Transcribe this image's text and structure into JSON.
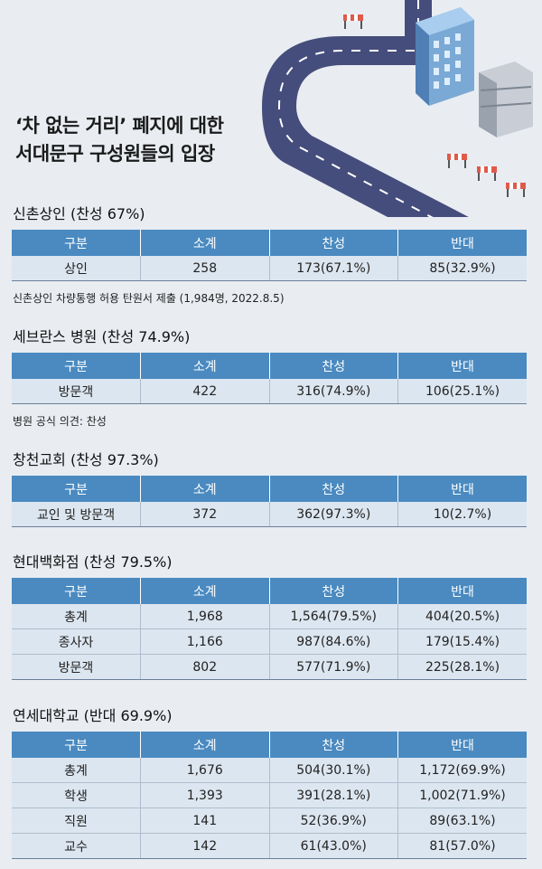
{
  "title": {
    "line1": "‘차 없는 거리’ 폐지에 대한",
    "line2": "서대문구 구성원들의 입장"
  },
  "sections": [
    {
      "heading": "신촌상인 (찬성 67%)",
      "headers": [
        "구분",
        "소계",
        "찬성",
        "반대"
      ],
      "rows": [
        [
          "상인",
          "258",
          "173(67.1%)",
          "85(32.9%)"
        ]
      ],
      "note": "신촌상인 차량통행 허용 탄원서 제출 (1,984명, 2022.8.5)"
    },
    {
      "heading": "세브란스 병원 (찬성 74.9%)",
      "headers": [
        "구분",
        "소계",
        "찬성",
        "반대"
      ],
      "rows": [
        [
          "방문객",
          "422",
          "316(74.9%)",
          "106(25.1%)"
        ]
      ],
      "note": "병원 공식 의견: 찬성"
    },
    {
      "heading": "창천교회 (찬성 97.3%)",
      "headers": [
        "구분",
        "소계",
        "찬성",
        "반대"
      ],
      "rows": [
        [
          "교인 및 방문객",
          "372",
          "362(97.3%)",
          "10(2.7%)"
        ]
      ]
    },
    {
      "heading": "현대백화점 (찬성 79.5%)",
      "headers": [
        "구분",
        "소계",
        "찬성",
        "반대"
      ],
      "rows": [
        [
          "총계",
          "1,968",
          "1,564(79.5%)",
          "404(20.5%)"
        ],
        [
          "종사자",
          "1,166",
          "987(84.6%)",
          "179(15.4%)"
        ],
        [
          "방문객",
          "802",
          "577(71.9%)",
          "225(28.1%)"
        ]
      ]
    },
    {
      "heading": "연세대학교 (반대 69.9%)",
      "headers": [
        "구분",
        "소계",
        "찬성",
        "반대"
      ],
      "rows": [
        [
          "총계",
          "1,676",
          "504(30.1%)",
          "1,172(69.9%)"
        ],
        [
          "학생",
          "1,393",
          "391(28.1%)",
          "1,002(71.9%)"
        ],
        [
          "직원",
          "141",
          "52(36.9%)",
          "89(63.1%)"
        ],
        [
          "교수",
          "142",
          "61(43.0%)",
          "81(57.0%)"
        ]
      ]
    }
  ]
}
